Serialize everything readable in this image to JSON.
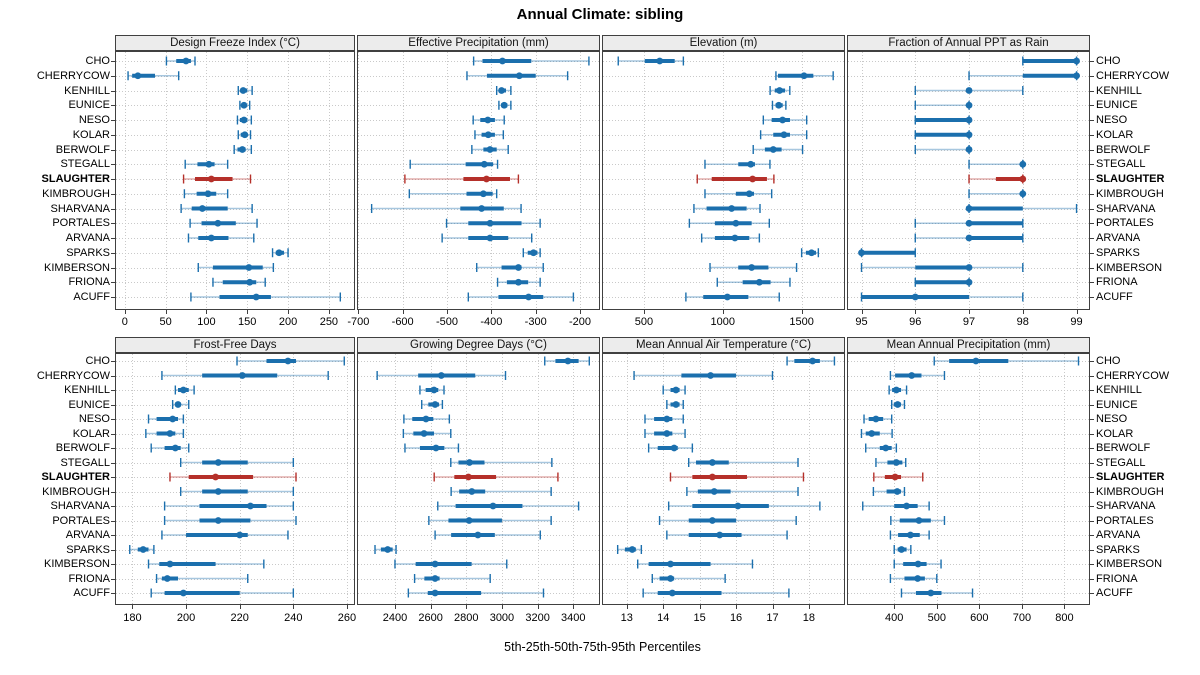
{
  "header": {
    "title": "Annual Climate: sibling"
  },
  "caption": "5th-25th-50th-75th-95th Percentiles",
  "colors": {
    "series": "#1b6fad",
    "highlight": "#b5302a",
    "grid": "#c9c9c9",
    "strip_bg": "#ececec",
    "border": "#404040"
  },
  "chart_data": {
    "type": "dotplot-percentiles",
    "title": "Annual Climate: sibling",
    "xlabel": "5th-25th-50th-75th-95th Percentiles",
    "percentile_labels": [
      "5th",
      "25th",
      "50th",
      "75th",
      "95th"
    ],
    "legend_position": "none",
    "grid": "dotted",
    "highlight_site": "SLAUGHTER",
    "sites": [
      "CHO",
      "CHERRYCOW",
      "KENHILL",
      "EUNICE",
      "NESO",
      "KOLAR",
      "BERWOLF",
      "STEGALL",
      "SLAUGHTER",
      "KIMBROUGH",
      "SHARVANA",
      "PORTALES",
      "ARVANA",
      "SPARKS",
      "KIMBERSON",
      "FRIONA",
      "ACUFF"
    ],
    "panels": [
      {
        "title": "Design Freeze Index (°C)",
        "ticks": [
          0,
          50,
          100,
          150,
          200,
          250
        ],
        "xlim": [
          -12,
          282
        ],
        "series": [
          [
            51,
            63,
            75,
            81,
            86
          ],
          [
            4,
            9,
            16,
            37,
            66
          ],
          [
            139,
            142,
            145,
            150,
            156
          ],
          [
            141,
            143,
            146,
            149,
            153
          ],
          [
            138,
            141,
            146,
            150,
            155
          ],
          [
            139,
            142,
            147,
            150,
            154
          ],
          [
            134,
            138,
            144,
            148,
            155
          ],
          [
            74,
            89,
            103,
            110,
            126
          ],
          [
            72,
            86,
            106,
            132,
            154
          ],
          [
            73,
            88,
            102,
            112,
            126
          ],
          [
            69,
            82,
            95,
            126,
            156
          ],
          [
            80,
            94,
            114,
            136,
            162
          ],
          [
            78,
            90,
            106,
            127,
            158
          ],
          [
            181,
            185,
            189,
            195,
            200
          ],
          [
            90,
            108,
            152,
            169,
            182
          ],
          [
            108,
            120,
            153,
            161,
            172
          ],
          [
            81,
            116,
            161,
            179,
            264
          ]
        ]
      },
      {
        "title": "Effective Precipitation (mm)",
        "ticks": [
          -700,
          -600,
          -500,
          -400,
          -300,
          -200
        ],
        "xlim": [
          -703,
          -155
        ],
        "series": [
          [
            -440,
            -420,
            -375,
            -310,
            -180
          ],
          [
            -455,
            -410,
            -337,
            -300,
            -228
          ],
          [
            -388,
            -383,
            -377,
            -367,
            -356
          ],
          [
            -383,
            -378,
            -371,
            -364,
            -356
          ],
          [
            -441,
            -425,
            -408,
            -392,
            -371
          ],
          [
            -437,
            -422,
            -407,
            -392,
            -373
          ],
          [
            -444,
            -418,
            -403,
            -388,
            -362
          ],
          [
            -583,
            -458,
            -416,
            -396,
            -386
          ],
          [
            -595,
            -463,
            -411,
            -358,
            -339
          ],
          [
            -585,
            -456,
            -418,
            -397,
            -388
          ],
          [
            -670,
            -470,
            -422,
            -372,
            -333
          ],
          [
            -501,
            -452,
            -403,
            -332,
            -290
          ],
          [
            -511,
            -452,
            -403,
            -362,
            -309
          ],
          [
            -328,
            -318,
            -305,
            -296,
            -290
          ],
          [
            -433,
            -377,
            -339,
            -332,
            -283
          ],
          [
            -386,
            -365,
            -339,
            -317,
            -290
          ],
          [
            -452,
            -384,
            -316,
            -283,
            -215
          ]
        ]
      },
      {
        "title": "Elevation (m)",
        "ticks": [
          500,
          1000,
          1500
        ],
        "xlim": [
          234,
          1775
        ],
        "series": [
          [
            337,
            505,
            600,
            695,
            750
          ],
          [
            1337,
            1350,
            1515,
            1574,
            1700
          ],
          [
            1300,
            1330,
            1360,
            1395,
            1425
          ],
          [
            1315,
            1335,
            1355,
            1380,
            1400
          ],
          [
            1257,
            1310,
            1379,
            1426,
            1532
          ],
          [
            1240,
            1320,
            1388,
            1426,
            1532
          ],
          [
            1193,
            1267,
            1320,
            1373,
            1506
          ],
          [
            887,
            1098,
            1177,
            1204,
            1299
          ],
          [
            838,
            930,
            1189,
            1280,
            1324
          ],
          [
            887,
            1083,
            1168,
            1198,
            1310
          ],
          [
            817,
            897,
            1056,
            1151,
            1236
          ],
          [
            788,
            950,
            1083,
            1183,
            1295
          ],
          [
            866,
            950,
            1077,
            1168,
            1232
          ],
          [
            1500,
            1527,
            1563,
            1591,
            1606
          ],
          [
            919,
            1098,
            1183,
            1289,
            1468
          ],
          [
            965,
            1126,
            1232,
            1303,
            1426
          ],
          [
            766,
            876,
            1029,
            1162,
            1358
          ]
        ]
      },
      {
        "title": "Fraction of Annual PPT as Rain",
        "ticks": [
          95,
          96,
          97,
          98,
          99
        ],
        "xlim": [
          94.73,
          99.25
        ],
        "series": [
          [
            98,
            98,
            99,
            99,
            99
          ],
          [
            97,
            98,
            99,
            99,
            99
          ],
          [
            96,
            97,
            97,
            97,
            98
          ],
          [
            96,
            97,
            97,
            97,
            97
          ],
          [
            96,
            96,
            97,
            97,
            97
          ],
          [
            96,
            96,
            97,
            97,
            97
          ],
          [
            96,
            97,
            97,
            97,
            97
          ],
          [
            97,
            98,
            98,
            98,
            98
          ],
          [
            97,
            97.5,
            98,
            98,
            98
          ],
          [
            97,
            98,
            98,
            98,
            98
          ],
          [
            97,
            97,
            97,
            98,
            99
          ],
          [
            96,
            97,
            97,
            98,
            98
          ],
          [
            96,
            97,
            97,
            98,
            98
          ],
          [
            95,
            95,
            95,
            96,
            96
          ],
          [
            95,
            96,
            97,
            97,
            98
          ],
          [
            96,
            96,
            97,
            97,
            97
          ],
          [
            95,
            95,
            96,
            97,
            98
          ]
        ]
      },
      {
        "title": "Frost-Free Days",
        "ticks": [
          180,
          200,
          220,
          240,
          260
        ],
        "xlim": [
          173.5,
          263
        ],
        "series": [
          [
            219,
            230,
            238,
            241,
            259
          ],
          [
            191,
            206,
            221,
            234,
            253
          ],
          [
            196,
            197,
            199,
            201,
            203
          ],
          [
            195,
            196,
            197,
            198,
            201
          ],
          [
            186,
            189,
            195,
            197,
            199
          ],
          [
            185,
            189,
            194,
            196,
            199
          ],
          [
            187,
            192,
            196,
            198,
            201
          ],
          [
            198,
            206,
            212,
            223,
            240
          ],
          [
            194,
            201,
            211,
            225,
            241
          ],
          [
            198,
            206,
            212,
            223,
            240
          ],
          [
            192,
            205,
            224,
            230,
            240
          ],
          [
            192,
            205,
            212,
            224,
            241
          ],
          [
            191,
            200,
            220,
            223,
            238
          ],
          [
            179,
            182,
            184,
            186,
            188
          ],
          [
            186,
            190,
            194,
            211,
            229
          ],
          [
            189,
            191,
            193,
            197,
            223
          ],
          [
            187,
            192,
            199,
            220,
            240
          ]
        ]
      },
      {
        "title": "Growing Degree Days (°C)",
        "ticks": [
          2400,
          2600,
          2800,
          3000,
          3200,
          3400
        ],
        "xlim": [
          2187,
          3550
        ],
        "series": [
          [
            3240,
            3300,
            3370,
            3430,
            3490
          ],
          [
            2300,
            2530,
            2660,
            2850,
            3020
          ],
          [
            2540,
            2572,
            2619,
            2643,
            2675
          ],
          [
            2550,
            2587,
            2625,
            2647,
            2666
          ],
          [
            2450,
            2497,
            2574,
            2615,
            2705
          ],
          [
            2447,
            2503,
            2563,
            2619,
            2713
          ],
          [
            2456,
            2540,
            2630,
            2677,
            2756
          ],
          [
            2713,
            2756,
            2818,
            2902,
            3280
          ],
          [
            2620,
            2733,
            2812,
            2967,
            3314
          ],
          [
            2715,
            2760,
            2831,
            2906,
            3276
          ],
          [
            2640,
            2740,
            2950,
            3115,
            3430
          ],
          [
            2590,
            2700,
            2816,
            3000,
            3276
          ],
          [
            2625,
            2715,
            2865,
            2960,
            3215
          ],
          [
            2288,
            2321,
            2359,
            2387,
            2406
          ],
          [
            2400,
            2516,
            2625,
            2830,
            3027
          ],
          [
            2510,
            2565,
            2625,
            2650,
            2934
          ],
          [
            2475,
            2584,
            2625,
            2883,
            3233
          ]
        ]
      },
      {
        "title": "Mean Annual Air Temperature (°C)",
        "ticks": [
          13,
          14,
          15,
          16,
          17,
          18
        ],
        "xlim": [
          12.32,
          18.99
        ],
        "series": [
          [
            17.4,
            17.6,
            18.1,
            18.3,
            18.7
          ],
          [
            13.2,
            14.5,
            15.3,
            16.0,
            17.0
          ],
          [
            14.0,
            14.2,
            14.35,
            14.45,
            14.6
          ],
          [
            14.1,
            14.2,
            14.35,
            14.45,
            14.55
          ],
          [
            13.5,
            13.75,
            14.1,
            14.25,
            14.55
          ],
          [
            13.5,
            13.75,
            14.1,
            14.25,
            14.6
          ],
          [
            13.6,
            13.85,
            14.3,
            14.4,
            14.8
          ],
          [
            14.7,
            14.9,
            15.35,
            15.8,
            17.7
          ],
          [
            14.2,
            14.8,
            15.35,
            16.3,
            17.85
          ],
          [
            14.65,
            14.95,
            15.4,
            15.85,
            17.7
          ],
          [
            14.15,
            14.8,
            16.05,
            16.9,
            18.3
          ],
          [
            13.9,
            14.7,
            15.35,
            16.0,
            17.65
          ],
          [
            14.1,
            14.7,
            15.55,
            16.15,
            17.4
          ],
          [
            12.75,
            12.95,
            13.15,
            13.25,
            13.4
          ],
          [
            13.3,
            13.6,
            14.2,
            15.3,
            16.45
          ],
          [
            13.7,
            13.9,
            14.2,
            14.3,
            15.7
          ],
          [
            13.45,
            13.85,
            14.25,
            15.6,
            17.45
          ]
        ]
      },
      {
        "title": "Mean Annual Precipitation (mm)",
        "ticks": [
          400,
          500,
          600,
          700,
          800
        ],
        "xlim": [
          289,
          860
        ],
        "series": [
          [
            494,
            529,
            592,
            668,
            833
          ],
          [
            391,
            402,
            441,
            464,
            518
          ],
          [
            388,
            395,
            405,
            416,
            429
          ],
          [
            394,
            399,
            408,
            416,
            424
          ],
          [
            329,
            340,
            357,
            374,
            394
          ],
          [
            323,
            333,
            347,
            366,
            395
          ],
          [
            333,
            366,
            380,
            394,
            405
          ],
          [
            357,
            384,
            405,
            419,
            427
          ],
          [
            352,
            378,
            402,
            416,
            467
          ],
          [
            351,
            382,
            407,
            416,
            424
          ],
          [
            326,
            400,
            429,
            455,
            482
          ],
          [
            392,
            413,
            458,
            486,
            518
          ],
          [
            391,
            409,
            438,
            460,
            482
          ],
          [
            400,
            408,
            417,
            429,
            439
          ],
          [
            400,
            421,
            456,
            476,
            510
          ],
          [
            391,
            424,
            455,
            472,
            500
          ],
          [
            417,
            451,
            486,
            511,
            584
          ]
        ]
      }
    ]
  }
}
